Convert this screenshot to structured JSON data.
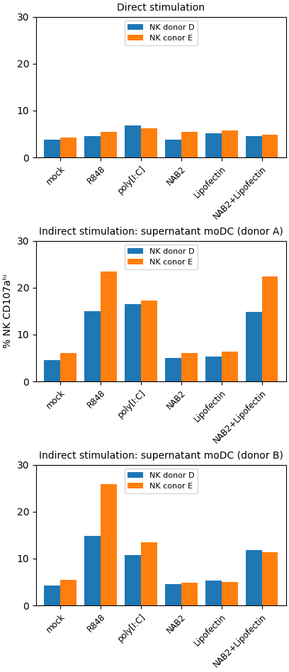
{
  "chart_data": [
    {
      "type": "bar",
      "title": "Direct stimulation",
      "categories": [
        "mock",
        "R848",
        "poly[I:C]",
        "NAB2",
        "Lipofectin",
        "NAB2+Lipofectin"
      ],
      "series": [
        {
          "name": "NK donor D",
          "values": [
            3.8,
            4.5,
            6.8,
            3.8,
            5.2,
            4.5
          ]
        },
        {
          "name": "NK conor E",
          "values": [
            4.3,
            5.5,
            6.2,
            5.5,
            5.7,
            4.8
          ]
        }
      ],
      "ylim": [
        0,
        30
      ],
      "yticks": [
        0,
        10,
        20,
        30
      ],
      "legend": "upper center"
    },
    {
      "type": "bar",
      "title": "Indirect stimulation: supernatant moDC (donor A)",
      "ylabel": "% NK CD107aʰⁱ",
      "categories": [
        "mock",
        "R848",
        "poly[I:C]",
        "NAB2",
        "Lipofectin",
        "NAB2+Lipofectin"
      ],
      "series": [
        {
          "name": "NK donor D",
          "values": [
            4.5,
            15.0,
            16.5,
            5.0,
            5.3,
            14.8
          ]
        },
        {
          "name": "NK conor E",
          "values": [
            6.0,
            23.5,
            17.3,
            6.0,
            6.3,
            22.3
          ]
        }
      ],
      "ylim": [
        0,
        30
      ],
      "yticks": [
        0,
        10,
        20,
        30
      ],
      "legend": "upper center"
    },
    {
      "type": "bar",
      "title": "Indirect stimulation: supernatant moDC (donor B)",
      "categories": [
        "mock",
        "R848",
        "poly[I:C]",
        "NAB2",
        "Lipofectin",
        "NAB2+Lipofectin"
      ],
      "series": [
        {
          "name": "NK donor D",
          "values": [
            4.3,
            14.8,
            10.8,
            4.5,
            5.3,
            11.8
          ]
        },
        {
          "name": "NK conor E",
          "values": [
            5.5,
            25.8,
            13.5,
            4.8,
            5.0,
            11.3
          ]
        }
      ],
      "ylim": [
        0,
        30
      ],
      "yticks": [
        0,
        10,
        20,
        30
      ],
      "legend": "upper center"
    }
  ]
}
